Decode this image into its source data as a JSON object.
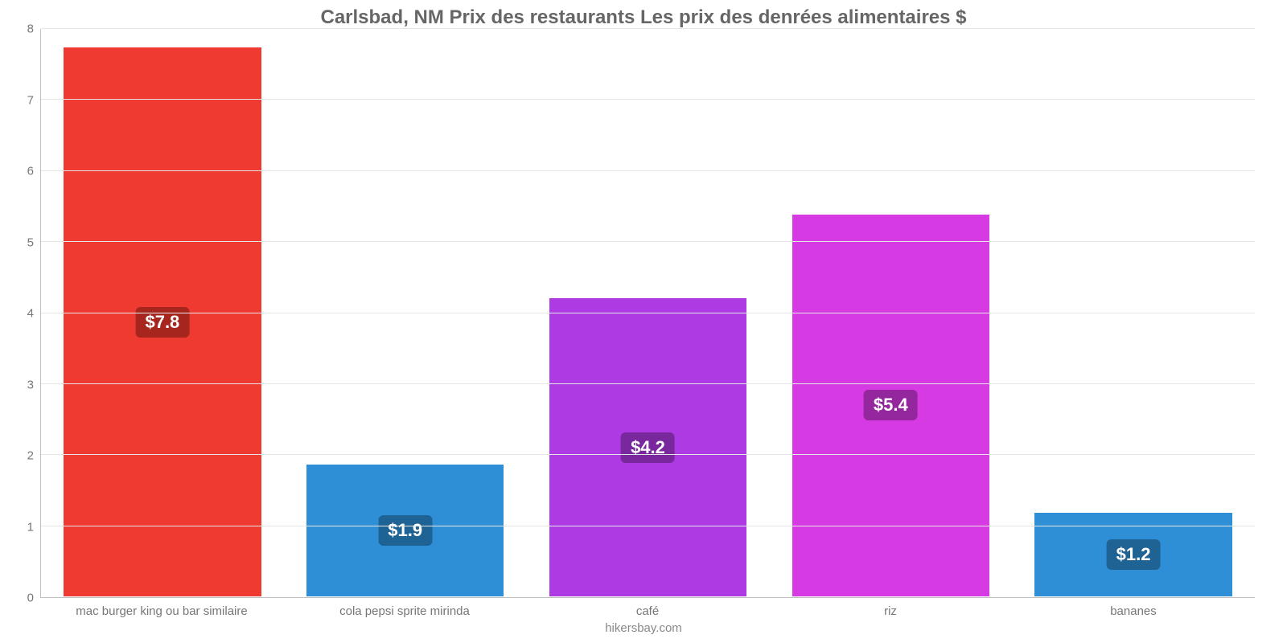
{
  "chart": {
    "type": "bar",
    "title": "Carlsbad, NM Prix des restaurants Les prix des denrées alimentaires $",
    "title_color": "#666666",
    "title_fontsize": 24,
    "footer": "hikersbay.com",
    "footer_color": "#888888",
    "footer_fontsize": 15,
    "background_color": "#ffffff",
    "grid_color": "#e6e6e6",
    "axis_label_color": "#777777",
    "axis_label_fontsize": 15,
    "y": {
      "min": 0,
      "max": 8,
      "ticks": [
        0,
        1,
        2,
        3,
        4,
        5,
        6,
        7,
        8
      ]
    },
    "bar_width_pct": 82,
    "badge_fontsize": 22,
    "bars": [
      {
        "label": "mac burger king ou bar similaire",
        "value": 7.75,
        "display": "$7.8",
        "color": "#ef3a32",
        "badge_bg": "#a6261e"
      },
      {
        "label": "cola pepsi sprite mirinda",
        "value": 1.88,
        "display": "$1.9",
        "color": "#2f8fd6",
        "badge_bg": "#1f6395"
      },
      {
        "label": "café",
        "value": 4.22,
        "display": "$4.2",
        "color": "#ad3ae3",
        "badge_bg": "#78279d"
      },
      {
        "label": "riz",
        "value": 5.4,
        "display": "$5.4",
        "color": "#d53ae3",
        "badge_bg": "#94279d"
      },
      {
        "label": "bananes",
        "value": 1.2,
        "display": "$1.2",
        "color": "#2f8fd6",
        "badge_bg": "#1f6395"
      }
    ]
  }
}
